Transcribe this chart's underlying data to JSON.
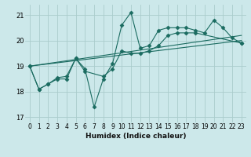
{
  "xlabel": "Humidex (Indice chaleur)",
  "bg_color": "#cce8ea",
  "grid_color": "#aacccc",
  "line_color": "#1a6b60",
  "ylim": [
    16.8,
    21.4
  ],
  "xlim": [
    -0.5,
    23.5
  ],
  "yticks": [
    17,
    18,
    19,
    20,
    21
  ],
  "xticks": [
    0,
    1,
    2,
    3,
    4,
    5,
    6,
    7,
    8,
    9,
    10,
    11,
    12,
    13,
    14,
    15,
    16,
    17,
    18,
    19,
    20,
    21,
    22,
    23
  ],
  "series": [
    {
      "x": [
        0,
        1,
        2,
        3,
        4,
        5,
        6,
        7,
        8,
        9,
        10,
        11,
        12,
        13,
        14,
        15,
        16,
        17,
        18,
        19,
        20,
        21,
        22,
        23
      ],
      "y": [
        19.0,
        18.1,
        18.3,
        18.5,
        18.5,
        19.3,
        18.9,
        17.4,
        18.5,
        19.1,
        20.6,
        21.1,
        19.7,
        19.8,
        20.4,
        20.5,
        20.5,
        20.5,
        20.4,
        20.3,
        20.8,
        20.5,
        20.1,
        19.9
      ],
      "markers": true
    },
    {
      "x": [
        0,
        1,
        2,
        3,
        4,
        5,
        6,
        8,
        9,
        10,
        11,
        12,
        13,
        14,
        15,
        16,
        17,
        18,
        23
      ],
      "y": [
        19.0,
        18.1,
        18.3,
        18.55,
        18.6,
        19.3,
        18.8,
        18.6,
        18.9,
        19.6,
        19.5,
        19.5,
        19.6,
        19.8,
        20.2,
        20.3,
        20.3,
        20.3,
        19.9
      ],
      "markers": true
    },
    {
      "x": [
        0,
        23
      ],
      "y": [
        19.0,
        20.0
      ],
      "markers": false
    },
    {
      "x": [
        0,
        23
      ],
      "y": [
        19.0,
        20.2
      ],
      "markers": false
    }
  ],
  "linewidth": 0.8,
  "markersize": 2.5,
  "marker": "D",
  "xlabel_fontsize": 6.5,
  "tick_fontsize": 5.5,
  "xlabel_fontweight": "bold"
}
